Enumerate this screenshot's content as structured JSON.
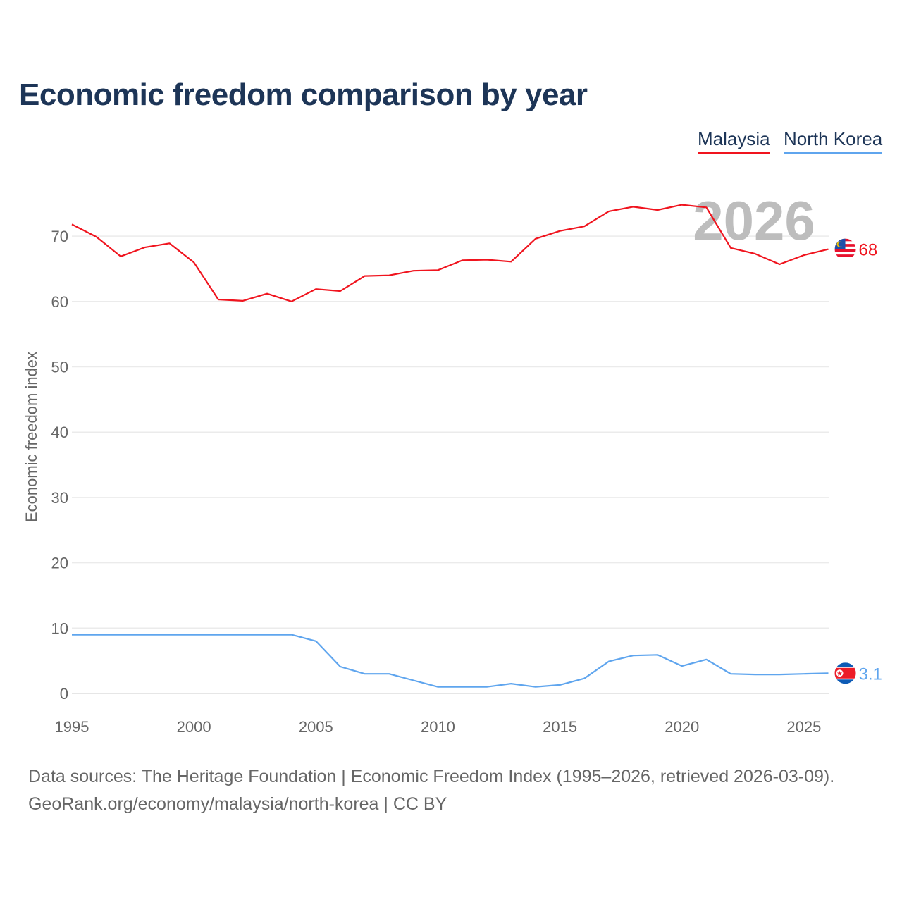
{
  "title": "Economic freedom comparison by year",
  "legend": [
    {
      "label": "Malaysia",
      "color": "#f0141e"
    },
    {
      "label": "North Korea",
      "color": "#5fa5ee"
    }
  ],
  "year_watermark": "2026",
  "chart_data": {
    "type": "line",
    "title": "Economic freedom comparison by year",
    "xlabel": "",
    "ylabel": "Economic freedom index",
    "xlim": [
      1995,
      2026
    ],
    "ylim": [
      0,
      80
    ],
    "x_ticks": [
      "1995",
      "2000",
      "2005",
      "2010",
      "2015",
      "2020",
      "2025"
    ],
    "y_ticks": [
      "0",
      "10",
      "20",
      "30",
      "40",
      "50",
      "60",
      "70"
    ],
    "grid": true,
    "legend_position": "top-right",
    "x": [
      1995,
      1996,
      1997,
      1998,
      1999,
      2000,
      2001,
      2002,
      2003,
      2004,
      2005,
      2006,
      2007,
      2008,
      2009,
      2010,
      2011,
      2012,
      2013,
      2014,
      2015,
      2016,
      2017,
      2018,
      2019,
      2020,
      2021,
      2022,
      2023,
      2024,
      2025,
      2026
    ],
    "series": [
      {
        "name": "Malaysia",
        "color": "#f0141e",
        "end_label": "68",
        "values": [
          71.8,
          69.9,
          66.9,
          68.3,
          68.9,
          66.0,
          60.3,
          60.1,
          61.2,
          60.0,
          61.9,
          61.6,
          63.9,
          64.0,
          64.7,
          64.8,
          66.3,
          66.4,
          66.1,
          69.6,
          70.8,
          71.5,
          73.8,
          74.5,
          74.0,
          74.8,
          74.4,
          68.2,
          67.3,
          65.7,
          67.1,
          68.0
        ]
      },
      {
        "name": "North Korea",
        "color": "#5fa5ee",
        "end_label": "3.1",
        "values": [
          9.0,
          9.0,
          9.0,
          9.0,
          9.0,
          9.0,
          9.0,
          9.0,
          9.0,
          9.0,
          8.0,
          4.1,
          3.0,
          3.0,
          2.0,
          1.0,
          1.0,
          1.0,
          1.5,
          1.0,
          1.3,
          2.3,
          4.9,
          5.8,
          5.9,
          4.2,
          5.2,
          3.0,
          2.9,
          2.9,
          3.0,
          3.1
        ]
      }
    ]
  },
  "footer": {
    "line1": "Data sources: The Heritage Foundation | Economic Freedom Index (1995–2026, retrieved 2026-03-09).",
    "line2": "GeoRank.org/economy/malaysia/north-korea | CC BY"
  }
}
